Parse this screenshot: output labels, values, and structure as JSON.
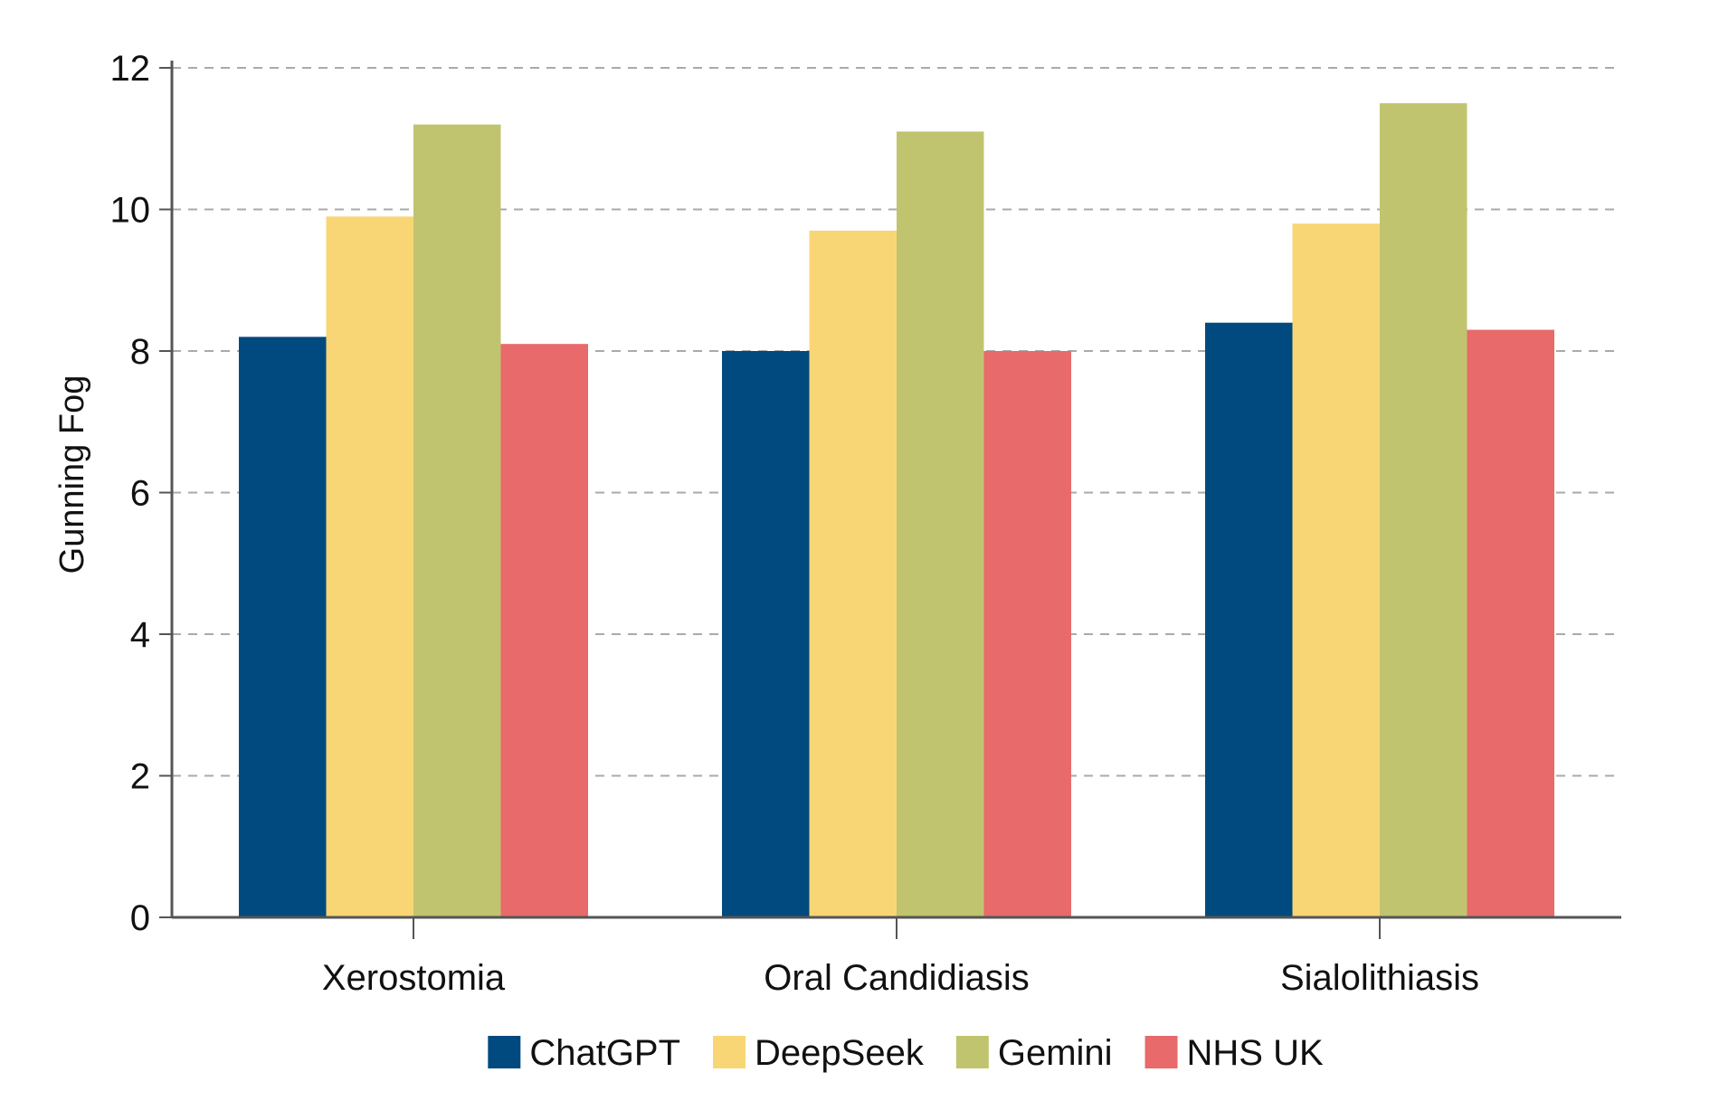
{
  "chart_data": {
    "type": "bar",
    "title": "",
    "xlabel": "",
    "ylabel": "Gunning Fog",
    "ylim": [
      0,
      12
    ],
    "yticks": [
      0,
      2,
      4,
      6,
      8,
      10,
      12
    ],
    "grid": true,
    "legend_position": "bottom",
    "categories": [
      "Xerostomia",
      "Oral Candidiasis",
      "Sialolithiasis"
    ],
    "series": [
      {
        "name": "ChatGPT",
        "color": "#004a7f",
        "values": [
          8.2,
          8.0,
          8.4
        ]
      },
      {
        "name": "DeepSeek",
        "color": "#f8d675",
        "values": [
          9.9,
          9.7,
          9.8
        ]
      },
      {
        "name": "Gemini",
        "color": "#c0c46f",
        "values": [
          11.2,
          11.1,
          11.5
        ]
      },
      {
        "name": "NHS UK",
        "color": "#e86a6a",
        "values": [
          8.1,
          8.0,
          8.3
        ]
      }
    ]
  }
}
